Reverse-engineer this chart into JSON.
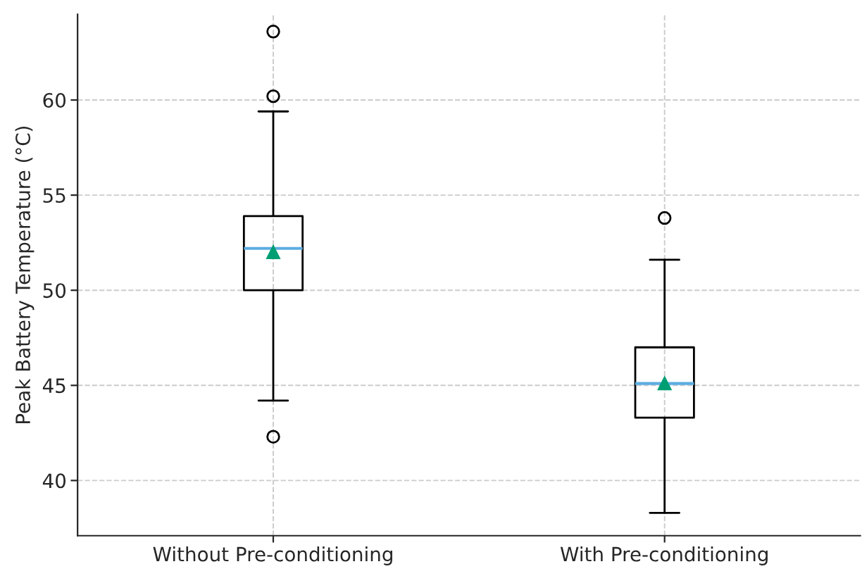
{
  "chart_data": {
    "type": "box",
    "ylabel": "Peak Battery Temperature (°C)",
    "categories": [
      "Without Pre-conditioning",
      "With Pre-conditioning"
    ],
    "boxes": [
      {
        "low": 44.2,
        "q1": 50.0,
        "median": 52.2,
        "q3": 53.9,
        "high": 59.4,
        "mean": 52.0,
        "outliers": [
          63.6,
          60.2,
          42.3
        ]
      },
      {
        "low": 38.3,
        "q1": 43.3,
        "median": 45.1,
        "q3": 47.0,
        "high": 51.6,
        "mean": 45.1,
        "outliers": [
          53.8
        ]
      }
    ],
    "ylim": [
      37.1,
      64.5
    ],
    "yticks": [
      40,
      45,
      50,
      55,
      60
    ],
    "grid": true
  }
}
